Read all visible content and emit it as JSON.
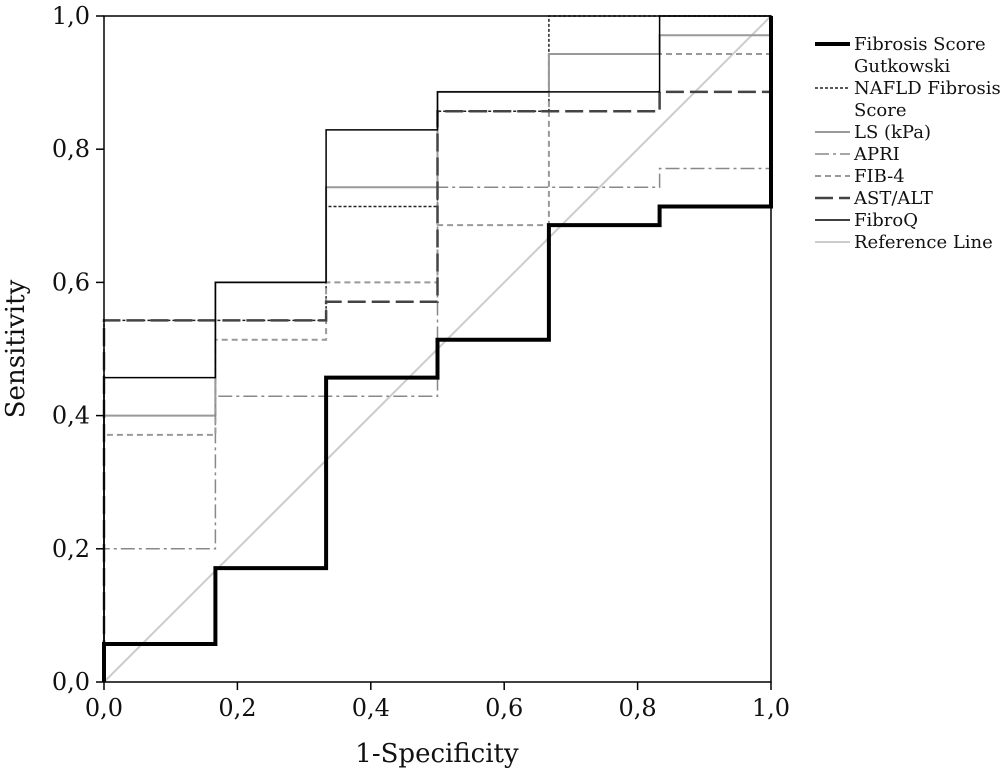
{
  "chart_data": {
    "type": "line",
    "title": "",
    "xlabel": "1-Specificity",
    "ylabel": "Sensitivity",
    "xlim": [
      0,
      1
    ],
    "ylim": [
      0,
      1
    ],
    "grid": false,
    "legend_placement": "right",
    "x_ticks": [
      "0,0",
      "0,2",
      "0,4",
      "0,6",
      "0,8",
      "1,0"
    ],
    "x_tick_values": [
      0,
      0.2,
      0.4,
      0.6,
      0.8,
      1.0
    ],
    "y_ticks": [
      "0,0",
      "0,2",
      "0,4",
      "0,6",
      "0,8",
      "1,0"
    ],
    "y_tick_values": [
      0,
      0.2,
      0.4,
      0.6,
      0.8,
      1.0
    ],
    "series": [
      {
        "name": "Fibrosis Score Gutkowski",
        "legend_lines": [
          "Fibrosis Score",
          "Gutkowski"
        ],
        "color": "#000000",
        "style": "solid-thick",
        "points": [
          [
            0,
            0
          ],
          [
            0,
            0.057
          ],
          [
            0.167,
            0.057
          ],
          [
            0.167,
            0.171
          ],
          [
            0.333,
            0.171
          ],
          [
            0.333,
            0.457
          ],
          [
            0.5,
            0.457
          ],
          [
            0.5,
            0.514
          ],
          [
            0.667,
            0.514
          ],
          [
            0.667,
            0.686
          ],
          [
            0.833,
            0.686
          ],
          [
            0.833,
            0.714
          ],
          [
            1,
            0.714
          ],
          [
            1,
            1
          ]
        ]
      },
      {
        "name": "NAFLD Fibrosis Score",
        "legend_lines": [
          "NAFLD Fibrosis",
          "Score"
        ],
        "color": "#222222",
        "style": "dotted",
        "points": [
          [
            0,
            0
          ],
          [
            0,
            0.543
          ],
          [
            0.333,
            0.543
          ],
          [
            0.333,
            0.714
          ],
          [
            0.5,
            0.714
          ],
          [
            0.5,
            0.857
          ],
          [
            0.667,
            0.857
          ],
          [
            0.667,
            1
          ],
          [
            1,
            1
          ]
        ]
      },
      {
        "name": "LS (kPa)",
        "legend_lines": [
          "LS (kPa)"
        ],
        "color": "#999999",
        "style": "solid",
        "points": [
          [
            0,
            0
          ],
          [
            0,
            0.4
          ],
          [
            0.167,
            0.4
          ],
          [
            0.167,
            0.6
          ],
          [
            0.333,
            0.6
          ],
          [
            0.333,
            0.743
          ],
          [
            0.5,
            0.743
          ],
          [
            0.5,
            0.886
          ],
          [
            0.667,
            0.886
          ],
          [
            0.667,
            0.943
          ],
          [
            0.833,
            0.943
          ],
          [
            0.833,
            0.971
          ],
          [
            1,
            0.971
          ],
          [
            1,
            1
          ]
        ]
      },
      {
        "name": "APRI",
        "legend_lines": [
          "APRI"
        ],
        "color": "#888888",
        "style": "dashdot",
        "points": [
          [
            0,
            0
          ],
          [
            0,
            0.2
          ],
          [
            0.167,
            0.2
          ],
          [
            0.167,
            0.429
          ],
          [
            0.5,
            0.429
          ],
          [
            0.5,
            0.743
          ],
          [
            0.833,
            0.743
          ],
          [
            0.833,
            0.771
          ],
          [
            1,
            0.771
          ],
          [
            1,
            1
          ]
        ]
      },
      {
        "name": "FIB-4",
        "legend_lines": [
          "FIB-4"
        ],
        "color": "#999999",
        "style": "shortdash",
        "points": [
          [
            0,
            0
          ],
          [
            0,
            0.371
          ],
          [
            0.167,
            0.371
          ],
          [
            0.167,
            0.514
          ],
          [
            0.333,
            0.514
          ],
          [
            0.333,
            0.6
          ],
          [
            0.5,
            0.6
          ],
          [
            0.5,
            0.686
          ],
          [
            0.667,
            0.686
          ],
          [
            0.667,
            0.943
          ],
          [
            1,
            0.943
          ],
          [
            1,
            1
          ]
        ]
      },
      {
        "name": "AST/ALT",
        "legend_lines": [
          "AST/ALT"
        ],
        "color": "#444444",
        "style": "longdash",
        "points": [
          [
            0,
            0
          ],
          [
            0,
            0.543
          ],
          [
            0.333,
            0.543
          ],
          [
            0.333,
            0.571
          ],
          [
            0.5,
            0.571
          ],
          [
            0.5,
            0.857
          ],
          [
            0.833,
            0.857
          ],
          [
            0.833,
            0.886
          ],
          [
            1,
            0.886
          ],
          [
            1,
            1
          ]
        ]
      },
      {
        "name": "FibroQ",
        "legend_lines": [
          "FibroQ"
        ],
        "color": "#000000",
        "style": "solid-thin",
        "points": [
          [
            0,
            0
          ],
          [
            0,
            0.457
          ],
          [
            0.167,
            0.457
          ],
          [
            0.167,
            0.6
          ],
          [
            0.333,
            0.6
          ],
          [
            0.333,
            0.829
          ],
          [
            0.5,
            0.829
          ],
          [
            0.5,
            0.886
          ],
          [
            0.833,
            0.886
          ],
          [
            0.833,
            1
          ],
          [
            1,
            1
          ]
        ]
      },
      {
        "name": "Reference Line",
        "legend_lines": [
          "Reference Line"
        ],
        "color": "#cccccc",
        "style": "solid",
        "points": [
          [
            0,
            0
          ],
          [
            1,
            1
          ]
        ]
      }
    ]
  }
}
